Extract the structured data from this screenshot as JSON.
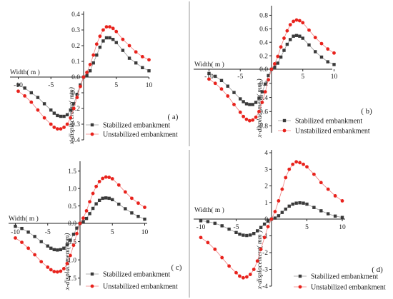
{
  "colors": {
    "stabilized": "#3a3a3a",
    "unstabilized": "#e8221c",
    "unstabilized_line": "#f08080",
    "stabilized_line": "#9a9a9a",
    "axis": "#222222",
    "divider": "#9a9a9a"
  },
  "chart_data": [
    {
      "type": "line",
      "panel_label": "( a)",
      "xlabel": "Width( m )",
      "ylabel": "x-displacement( mm)",
      "ylim": [
        -0.4,
        0.4
      ],
      "xlim": [
        -11,
        10
      ],
      "xticks": [
        "-10",
        "-5",
        "0",
        "5",
        "10"
      ],
      "yticks": [
        "0.4",
        "0.3",
        "0.2",
        "0.1",
        "0.0",
        "-0.1",
        "-0.2",
        "-0.3",
        "-0.4"
      ],
      "legend": [
        "Stabilized embankment",
        "Unstabilized embankment"
      ],
      "series": [
        {
          "name": "Stabilized embankment",
          "marker": "square",
          "x": [
            -10,
            -9,
            -8,
            -7,
            -6,
            -5,
            -4.5,
            -4,
            -3.5,
            -3,
            -2.5,
            -2,
            -1.5,
            -1,
            -0.5,
            0,
            0.5,
            1,
            1.5,
            2,
            2.5,
            3,
            3.5,
            4,
            4.5,
            5,
            6,
            7,
            8,
            9,
            10
          ],
          "y": [
            -0.05,
            -0.07,
            -0.1,
            -0.13,
            -0.17,
            -0.21,
            -0.23,
            -0.245,
            -0.25,
            -0.25,
            -0.24,
            -0.21,
            -0.17,
            -0.11,
            -0.05,
            0.0,
            0.01,
            0.04,
            0.09,
            0.14,
            0.19,
            0.23,
            0.25,
            0.25,
            0.24,
            0.22,
            0.17,
            0.12,
            0.09,
            0.06,
            0.04
          ]
        },
        {
          "name": "Unstabilized embankment",
          "marker": "circle",
          "x": [
            -10,
            -9,
            -8,
            -7,
            -6,
            -5,
            -4.5,
            -4,
            -3.5,
            -3,
            -2.5,
            -2,
            -1.5,
            -1,
            -0.5,
            0,
            0.5,
            1,
            1.5,
            2,
            2.5,
            3,
            3.5,
            4,
            4.5,
            5,
            6,
            7,
            8,
            9,
            10
          ],
          "y": [
            -0.09,
            -0.12,
            -0.16,
            -0.21,
            -0.26,
            -0.3,
            -0.32,
            -0.33,
            -0.33,
            -0.32,
            -0.3,
            -0.26,
            -0.2,
            -0.13,
            -0.06,
            0.0,
            0.03,
            0.08,
            0.14,
            0.21,
            0.26,
            0.3,
            0.32,
            0.32,
            0.31,
            0.29,
            0.24,
            0.2,
            0.16,
            0.13,
            0.11
          ]
        }
      ]
    },
    {
      "type": "line",
      "panel_label": "( b)",
      "xlabel": "Width( m )",
      "ylabel": "x-displacement( mm )",
      "ylim": [
        -0.9,
        0.9
      ],
      "xlim": [
        -11,
        10
      ],
      "xticks": [
        "-10",
        "-5",
        "0",
        "5",
        "10"
      ],
      "yticks": [
        "0.8",
        "0.6",
        "0.4",
        "0.2",
        "0.0",
        "-0.2",
        "-0.4",
        "-0.6",
        "-0.8"
      ],
      "legend": [
        "Stabilized embankment",
        "Unstabilized embankment"
      ],
      "series": [
        {
          "name": "Stabilized embankment",
          "marker": "square",
          "x": [
            -10,
            -9,
            -8,
            -7,
            -6,
            -5,
            -4.5,
            -4,
            -3.5,
            -3,
            -2.5,
            -2,
            -1.5,
            -1,
            -0.5,
            0,
            0.5,
            1,
            1.5,
            2,
            2.5,
            3,
            3.5,
            4,
            4.5,
            5,
            6,
            7,
            8,
            9,
            10
          ],
          "y": [
            -0.06,
            -0.1,
            -0.16,
            -0.24,
            -0.33,
            -0.42,
            -0.46,
            -0.49,
            -0.5,
            -0.5,
            -0.47,
            -0.41,
            -0.32,
            -0.21,
            -0.09,
            0.0,
            0.03,
            0.09,
            0.18,
            0.28,
            0.37,
            0.44,
            0.49,
            0.5,
            0.49,
            0.46,
            0.36,
            0.26,
            0.18,
            0.11,
            0.07
          ]
        },
        {
          "name": "Unstabilized embankment",
          "marker": "circle",
          "x": [
            -10,
            -9,
            -8,
            -7,
            -6,
            -5,
            -4.5,
            -4,
            -3.5,
            -3,
            -2.5,
            -2,
            -1.5,
            -1,
            -0.5,
            0,
            0.5,
            1,
            1.5,
            2,
            2.5,
            3,
            3.5,
            4,
            4.5,
            5,
            6,
            7,
            8,
            9,
            10
          ],
          "y": [
            -0.14,
            -0.2,
            -0.28,
            -0.38,
            -0.5,
            -0.61,
            -0.67,
            -0.71,
            -0.73,
            -0.72,
            -0.68,
            -0.6,
            -0.47,
            -0.32,
            -0.15,
            0.0,
            0.08,
            0.19,
            0.33,
            0.46,
            0.57,
            0.66,
            0.71,
            0.73,
            0.72,
            0.69,
            0.58,
            0.47,
            0.38,
            0.3,
            0.24
          ]
        }
      ]
    },
    {
      "type": "line",
      "panel_label": "( c)",
      "xlabel": "Width( m )",
      "ylabel": "x-displacement( mm)",
      "ylim": [
        -1.7,
        1.7
      ],
      "xlim": [
        -11,
        10
      ],
      "xticks": [
        "-10",
        "-5",
        "0",
        "5",
        "10"
      ],
      "yticks": [
        "1.5",
        "1.0",
        "0.5",
        "0.0",
        "-0.5",
        "-1.0",
        "-1.5"
      ],
      "legend": [
        "Stabilized embankment",
        "Unstabilized embankment"
      ],
      "series": [
        {
          "name": "Stabilized embankment",
          "marker": "square",
          "x": [
            -10,
            -9,
            -8,
            -7,
            -6,
            -5,
            -4.5,
            -4,
            -3.5,
            -3,
            -2.5,
            -2,
            -1.5,
            -1,
            -0.5,
            0,
            0.5,
            1,
            1.5,
            2,
            2.5,
            3,
            3.5,
            4,
            4.5,
            5,
            6,
            7,
            8,
            9,
            10
          ],
          "y": [
            -0.08,
            -0.14,
            -0.24,
            -0.36,
            -0.5,
            -0.62,
            -0.68,
            -0.72,
            -0.73,
            -0.72,
            -0.68,
            -0.59,
            -0.46,
            -0.3,
            -0.13,
            0.0,
            0.05,
            0.14,
            0.28,
            0.43,
            0.56,
            0.66,
            0.72,
            0.73,
            0.72,
            0.68,
            0.55,
            0.42,
            0.3,
            0.2,
            0.12
          ]
        },
        {
          "name": "Unstabilized embankment",
          "marker": "circle",
          "x": [
            -10,
            -9,
            -8,
            -7,
            -6,
            -5,
            -4.5,
            -4,
            -3.5,
            -3,
            -2.5,
            -2,
            -1.5,
            -1,
            -0.5,
            0,
            0.5,
            1,
            1.5,
            2,
            2.5,
            3,
            3.5,
            4,
            4.5,
            5,
            6,
            7,
            8,
            9,
            10
          ],
          "y": [
            -0.4,
            -0.52,
            -0.68,
            -0.86,
            -1.05,
            -1.2,
            -1.27,
            -1.32,
            -1.33,
            -1.31,
            -1.24,
            -1.1,
            -0.88,
            -0.6,
            -0.28,
            0.0,
            0.15,
            0.36,
            0.62,
            0.86,
            1.06,
            1.2,
            1.29,
            1.33,
            1.32,
            1.28,
            1.1,
            0.9,
            0.72,
            0.58,
            0.46
          ]
        }
      ]
    },
    {
      "type": "line",
      "panel_label": "( d)",
      "xlabel": "Width( m )",
      "ylabel": "x-displacement( mm )",
      "ylim": [
        -4,
        4
      ],
      "xlim": [
        -11,
        10
      ],
      "xticks": [
        "-10",
        "-5",
        "0",
        "5",
        "10"
      ],
      "yticks": [
        "4",
        "3",
        "2",
        "1",
        "0",
        "-1",
        "-2",
        "-3",
        "-4"
      ],
      "legend": [
        "Stabilized embankment",
        "Unstabilized embankment"
      ],
      "series": [
        {
          "name": "Stabilized embankment",
          "marker": "square",
          "x": [
            -10,
            -9,
            -8,
            -7,
            -6,
            -5,
            -4.5,
            -4,
            -3.5,
            -3,
            -2.5,
            -2,
            -1.5,
            -1,
            -0.5,
            0,
            0.5,
            1,
            1.5,
            2,
            2.5,
            3,
            3.5,
            4,
            4.5,
            5,
            6,
            7,
            8,
            9,
            10
          ],
          "y": [
            -0.1,
            -0.15,
            -0.25,
            -0.4,
            -0.6,
            -0.8,
            -0.9,
            -0.96,
            -0.98,
            -0.95,
            -0.86,
            -0.7,
            -0.5,
            -0.3,
            -0.12,
            0.0,
            0.06,
            0.2,
            0.4,
            0.6,
            0.78,
            0.9,
            0.96,
            0.98,
            0.96,
            0.9,
            0.7,
            0.5,
            0.32,
            0.18,
            0.1
          ]
        },
        {
          "name": "Unstabilized embankment",
          "marker": "circle",
          "x": [
            -10,
            -9,
            -8,
            -7,
            -6,
            -5,
            -4.5,
            -4,
            -3.5,
            -3,
            -2.5,
            -2,
            -1.5,
            -1,
            -0.5,
            0,
            0.5,
            1,
            1.5,
            2,
            2.5,
            3,
            3.5,
            4,
            4.5,
            5,
            6,
            7,
            8,
            9,
            10
          ],
          "y": [
            -1.1,
            -1.4,
            -1.8,
            -2.3,
            -2.8,
            -3.2,
            -3.4,
            -3.5,
            -3.45,
            -3.3,
            -3.0,
            -2.5,
            -1.8,
            -1.1,
            -0.45,
            0.0,
            0.45,
            1.1,
            1.8,
            2.5,
            3.0,
            3.3,
            3.45,
            3.4,
            3.3,
            3.15,
            2.7,
            2.2,
            1.8,
            1.4,
            1.1
          ]
        }
      ]
    }
  ]
}
